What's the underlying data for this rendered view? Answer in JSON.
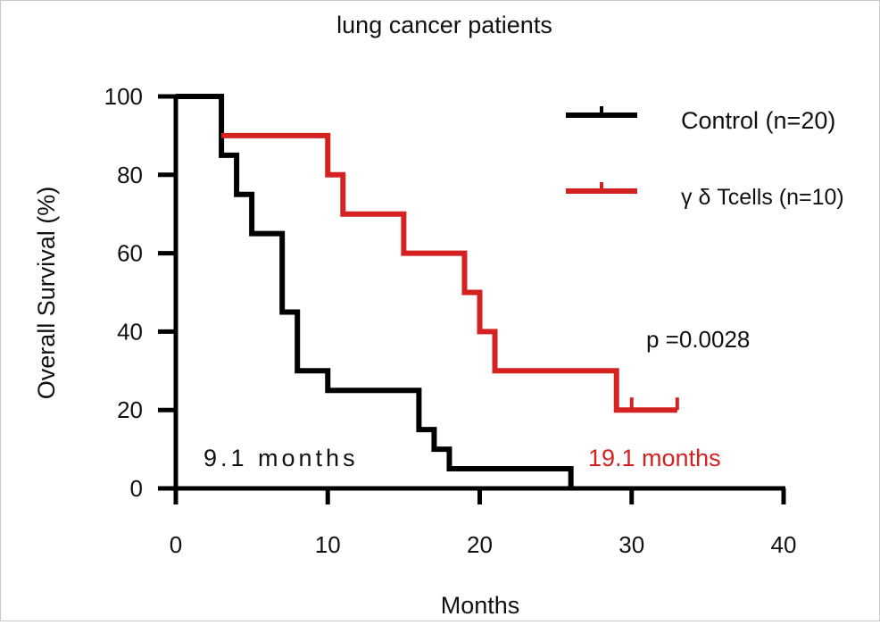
{
  "chart_data": {
    "type": "line",
    "subtype": "kaplan-meier step",
    "title": "lung cancer patients",
    "xlabel": "Months",
    "ylabel": "Overall Survival (%)",
    "xlim": [
      0,
      40
    ],
    "ylim": [
      0,
      100
    ],
    "xticks": [
      0,
      10,
      20,
      30,
      40
    ],
    "yticks": [
      0,
      20,
      40,
      60,
      80,
      100
    ],
    "grid": false,
    "legend_position": "top-right",
    "series": [
      {
        "name": "Control (n=20)",
        "color": "#000000",
        "x": [
          0,
          3,
          4,
          5,
          7,
          8,
          10,
          16,
          17,
          18,
          26
        ],
        "y": [
          100,
          85,
          75,
          65,
          45,
          30,
          25,
          15,
          10,
          5,
          0
        ],
        "censored": []
      },
      {
        "name": "γ δ Tcells (n=10)",
        "color": "#d42121",
        "x": [
          3,
          10,
          11,
          15,
          19,
          20,
          21,
          29,
          33
        ],
        "y": [
          90,
          80,
          70,
          60,
          50,
          40,
          30,
          20,
          20
        ],
        "censored": [
          {
            "x": 30,
            "y": 20
          },
          {
            "x": 33,
            "y": 20
          }
        ]
      }
    ],
    "annotations": [
      {
        "text": "p =0.0028",
        "color": "#111111"
      },
      {
        "text": "9.1 months",
        "color": "#111111"
      },
      {
        "text": "19.1 months",
        "color": "#d42121"
      }
    ]
  }
}
